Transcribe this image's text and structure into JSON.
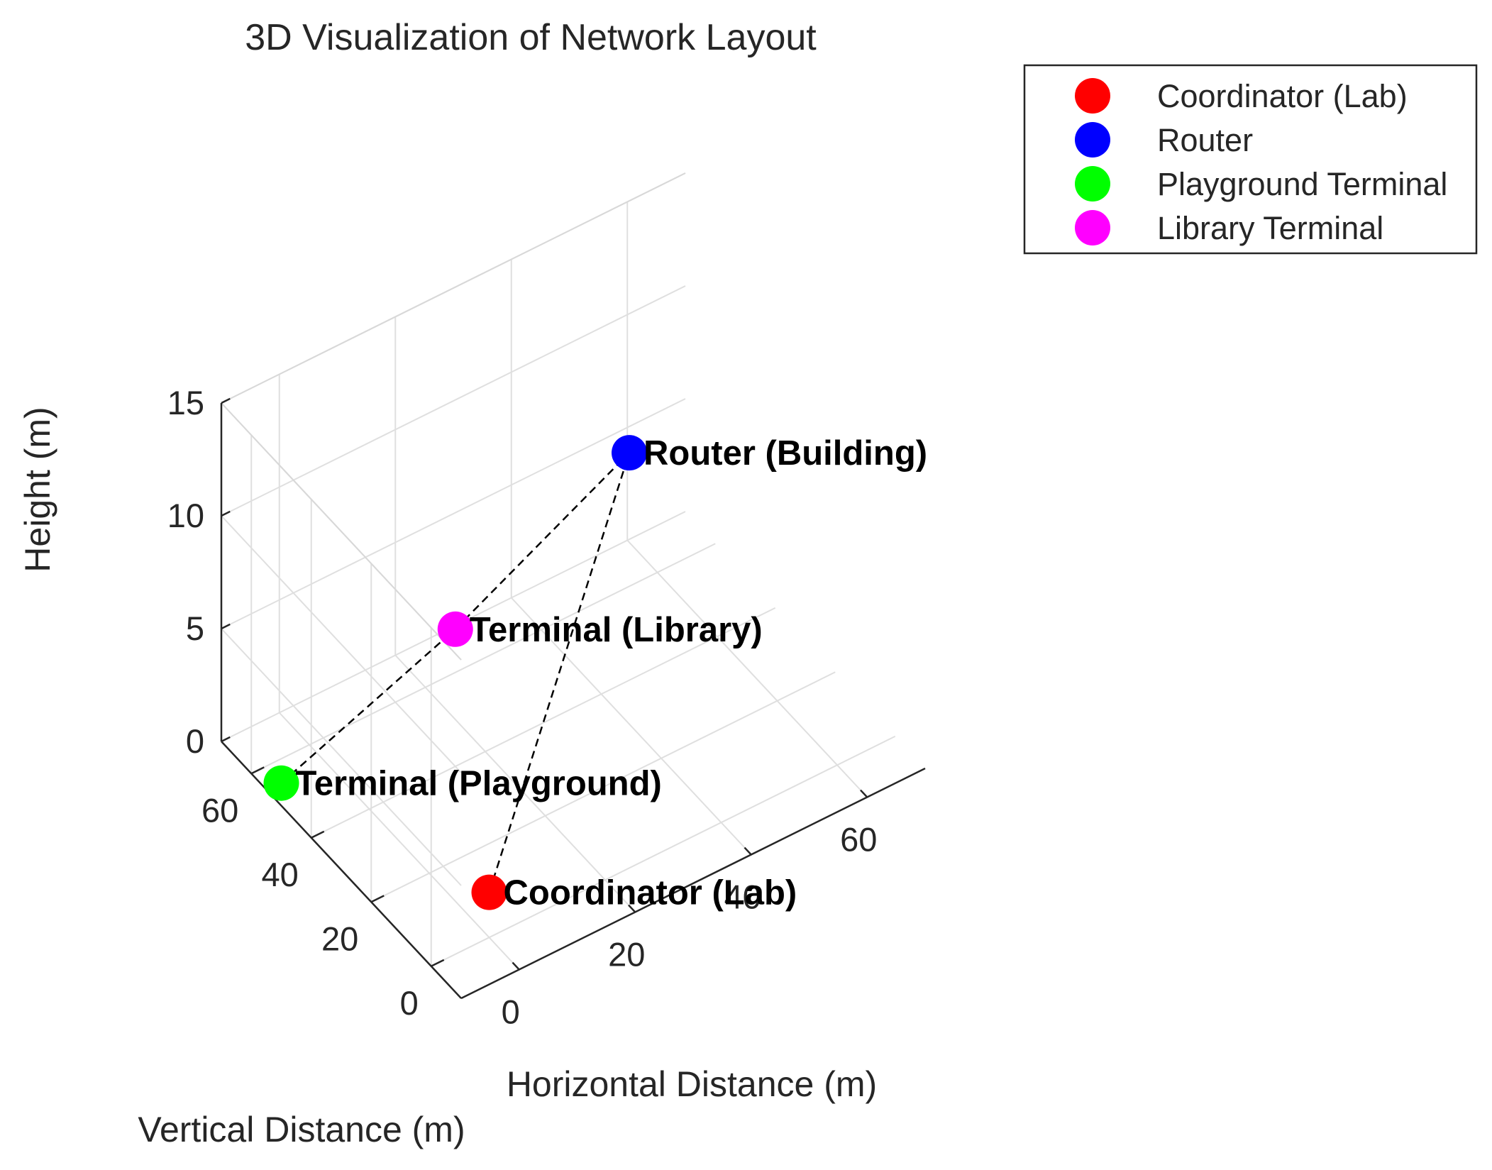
{
  "chart_data": {
    "type": "scatter",
    "title": "3D Visualization of Network Layout",
    "xlabel": "Horizontal Distance (m)",
    "ylabel": "Vertical Distance (m)",
    "zlabel": "Height (m)",
    "xlim": [
      -10,
      70
    ],
    "ylim": [
      -10,
      70
    ],
    "zlim": [
      0,
      15
    ],
    "x_ticks": [
      "0",
      "20",
      "40",
      "60"
    ],
    "y_ticks": [
      "0",
      "20",
      "40",
      "60"
    ],
    "z_ticks": [
      "0",
      "5",
      "10",
      "15"
    ],
    "grid": true,
    "legend_position": "top-right",
    "series": [
      {
        "name": "Coordinator (Lab)",
        "color": "#ff0000",
        "x": 0,
        "y": 0,
        "z": 2,
        "label": "Coordinator (Lab)"
      },
      {
        "name": "Router",
        "color": "#0000ff",
        "x": 50,
        "y": 50,
        "z": 8,
        "label": "Router (Building)"
      },
      {
        "name": "Playground Terminal",
        "color": "#00ff00",
        "x": -10,
        "y": 50,
        "z": 1,
        "label": "Terminal (Playground)"
      },
      {
        "name": "Library Terminal",
        "color": "#ff00ff",
        "x": 20,
        "y": 50,
        "z": 4,
        "label": "Terminal (Library)"
      }
    ],
    "connections": [
      {
        "from": "Coordinator (Lab)",
        "to": "Router"
      },
      {
        "from": "Playground Terminal",
        "to": "Library Terminal"
      },
      {
        "from": "Library Terminal",
        "to": "Router"
      }
    ]
  }
}
